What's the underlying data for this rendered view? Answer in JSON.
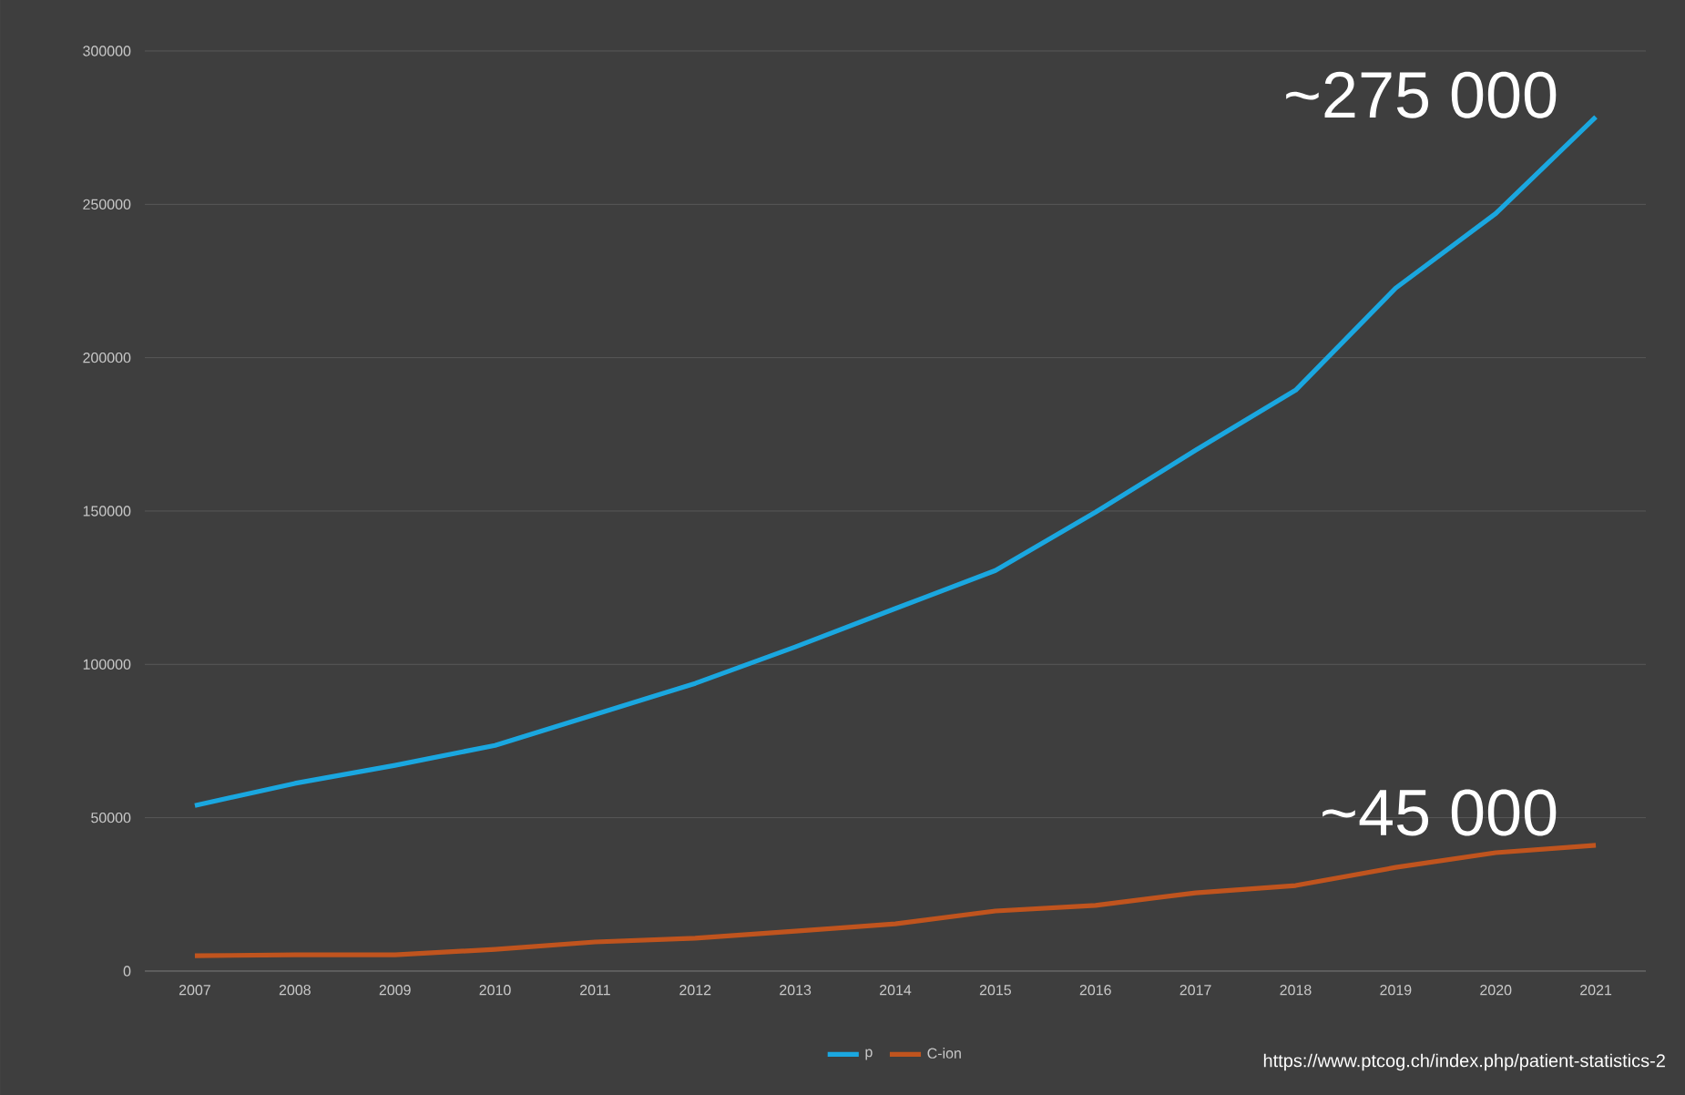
{
  "chart_data": {
    "type": "line",
    "categories": [
      "2007",
      "2008",
      "2009",
      "2010",
      "2011",
      "2012",
      "2013",
      "2014",
      "2015",
      "2016",
      "2017",
      "2018",
      "2019",
      "2020",
      "2021"
    ],
    "series": [
      {
        "name": "p",
        "color": "#1aa7e0",
        "values": [
          54000,
          61200,
          67100,
          73600,
          83700,
          93800,
          105700,
          118200,
          130600,
          149600,
          169800,
          189400,
          222700,
          247000,
          278500
        ]
      },
      {
        "name": "C-ion",
        "color": "#c0541e",
        "values": [
          5000,
          5300,
          5300,
          7100,
          9500,
          10700,
          13000,
          15400,
          19600,
          21400,
          25500,
          27900,
          33800,
          38600,
          41000
        ]
      }
    ],
    "ylim": [
      0,
      300000
    ],
    "yticks": [
      0,
      50000,
      100000,
      150000,
      200000,
      250000,
      300000
    ],
    "grid": "y",
    "legend": "bottom",
    "marker": "none",
    "line_style": "solid",
    "annotations": [
      {
        "text": "~275 000",
        "x": "2021",
        "y": 275000
      },
      {
        "text": "~45 000",
        "x": "2021",
        "y": 41000
      },
      "https://www.ptcog.ch/index.php/patient-statistics-2"
    ]
  }
}
